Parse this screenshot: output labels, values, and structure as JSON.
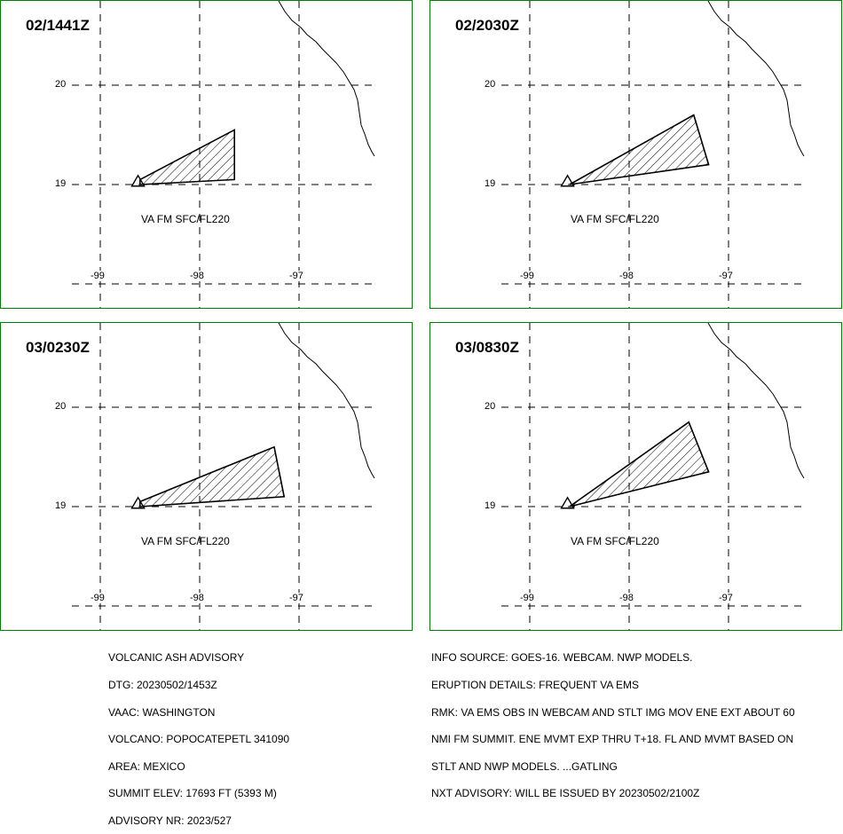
{
  "panels": [
    {
      "time": "02/1441Z",
      "label": "VA FM SFC/FL220",
      "ash_polygon": [
        [
          -98.6,
          19.05
        ],
        [
          -97.65,
          19.55
        ],
        [
          -97.65,
          19.05
        ],
        [
          -98.6,
          19.0
        ]
      ]
    },
    {
      "time": "02/2030Z",
      "label": "VA FM SFC/FL220",
      "ash_polygon": [
        [
          -98.6,
          19.0
        ],
        [
          -97.35,
          19.7
        ],
        [
          -97.2,
          19.2
        ],
        [
          -98.6,
          19.0
        ]
      ]
    },
    {
      "time": "03/0230Z",
      "label": "VA FM SFC/FL220",
      "ash_polygon": [
        [
          -98.6,
          19.05
        ],
        [
          -97.25,
          19.6
        ],
        [
          -97.15,
          19.1
        ],
        [
          -98.6,
          19.0
        ]
      ]
    },
    {
      "time": "03/0830Z",
      "label": "VA FM SFC/FL220",
      "ash_polygon": [
        [
          -98.6,
          19.0
        ],
        [
          -97.4,
          19.85
        ],
        [
          -97.2,
          19.35
        ],
        [
          -98.6,
          19.0
        ]
      ]
    }
  ],
  "lat_labels": [
    "20",
    "19"
  ],
  "lon_labels": [
    "-99",
    "-98",
    "-97"
  ],
  "lat_values": [
    20,
    19
  ],
  "lon_values": [
    -99,
    -98,
    -97
  ],
  "volcano": {
    "lon": -98.62,
    "lat": 19.02
  },
  "colors": {
    "border": "#008000",
    "hatch": "#000000"
  },
  "advisory_left": [
    "VOLCANIC ASH ADVISORY",
    "DTG: 20230502/1453Z",
    "VAAC: WASHINGTON",
    "VOLCANO: POPOCATEPETL 341090",
    "AREA: MEXICO",
    "SUMMIT ELEV: 17693 FT (5393 M)",
    "ADVISORY NR: 2023/527"
  ],
  "advisory_right": [
    "INFO SOURCE: GOES-16. WEBCAM. NWP MODELS.",
    "ERUPTION DETAILS: FREQUENT VA EMS",
    "RMK: VA EMS OBS IN WEBCAM AND STLT IMG MOV ENE EXT ABOUT 60",
    "NMI FM SUMMIT. ENE MVMT EXP THRU T+18. FL AND MVMT BASED ON",
    "STLT AND NWP MODELS. ...GATLING",
    "NXT ADVISORY: WILL BE ISSUED BY 20230502/2100Z"
  ]
}
